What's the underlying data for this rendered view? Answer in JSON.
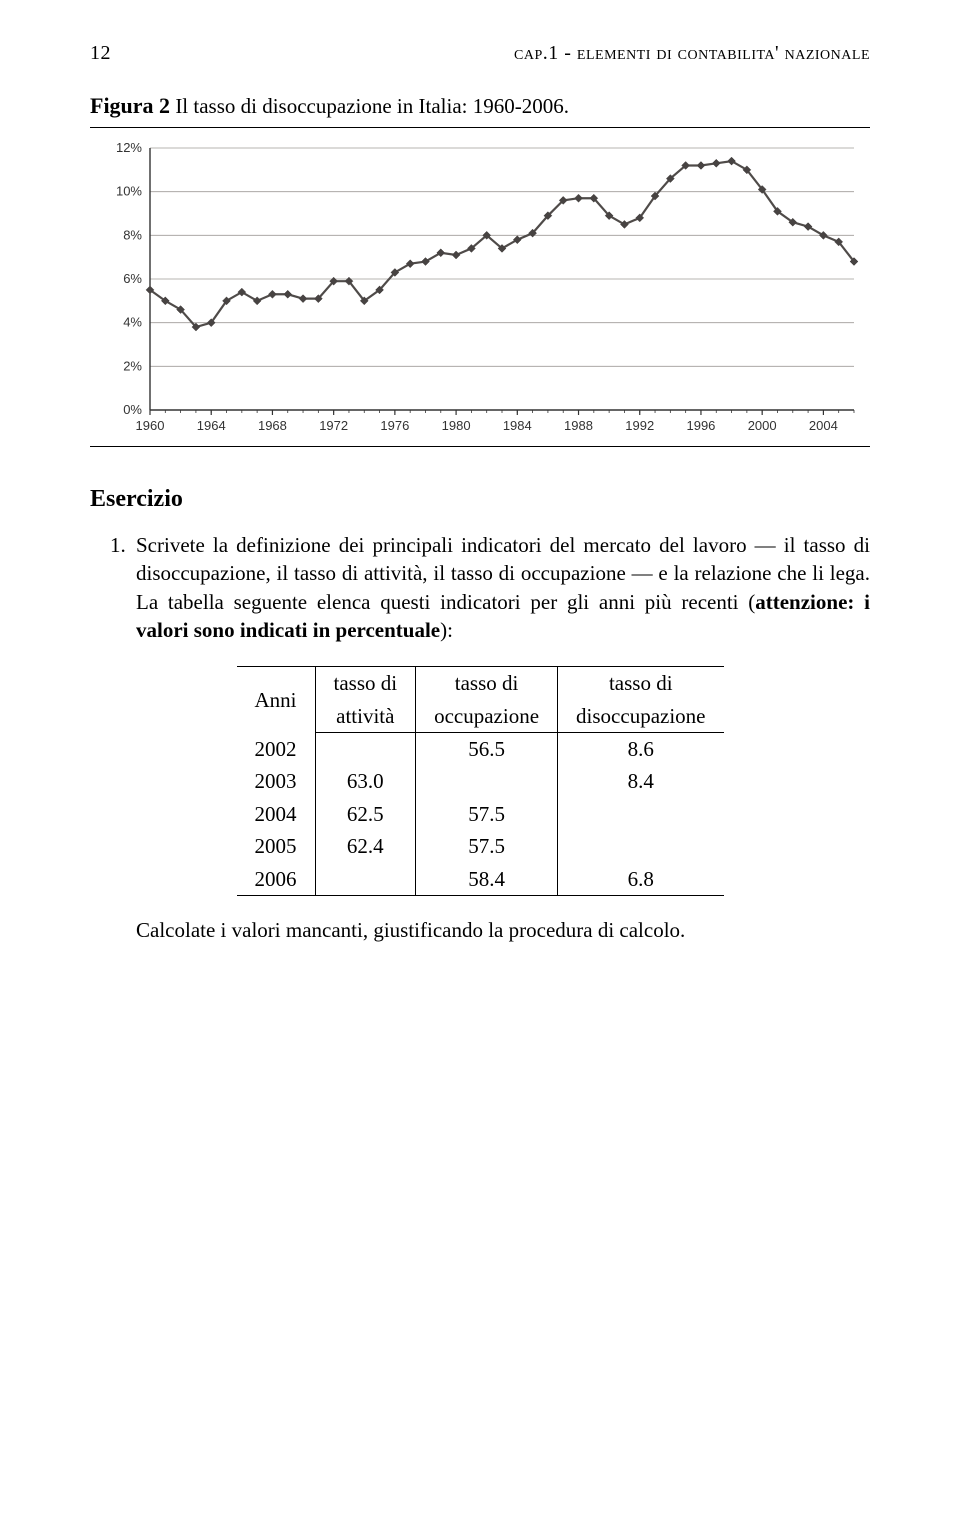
{
  "header": {
    "page_number": "12",
    "running_title": "cap.1 - elementi di contabilita' nazionale"
  },
  "figure": {
    "label": "Figura 2",
    "caption": "Il tasso di disoccupazione in Italia: 1960-2006."
  },
  "chart": {
    "type": "line",
    "background_color": "#ffffff",
    "grid_color": "#9f9c99",
    "axis_color": "#333333",
    "line_color": "#4f4b49",
    "marker_color": "#474342",
    "marker_size": 4,
    "line_width": 2.2,
    "label_fontsize": 13,
    "label_font": "Arial, Helvetica, sans-serif",
    "x_start": 1960,
    "x_end": 2006,
    "x_tick_step": 4,
    "y_min": 0,
    "y_max": 12,
    "y_tick_step": 2,
    "y_tick_suffix": "%",
    "series": [
      {
        "x": 1960,
        "y": 5.5
      },
      {
        "x": 1961,
        "y": 5.0
      },
      {
        "x": 1962,
        "y": 4.6
      },
      {
        "x": 1963,
        "y": 3.8
      },
      {
        "x": 1964,
        "y": 4.0
      },
      {
        "x": 1965,
        "y": 5.0
      },
      {
        "x": 1966,
        "y": 5.4
      },
      {
        "x": 1967,
        "y": 5.0
      },
      {
        "x": 1968,
        "y": 5.3
      },
      {
        "x": 1969,
        "y": 5.3
      },
      {
        "x": 1970,
        "y": 5.1
      },
      {
        "x": 1971,
        "y": 5.1
      },
      {
        "x": 1972,
        "y": 5.9
      },
      {
        "x": 1973,
        "y": 5.9
      },
      {
        "x": 1974,
        "y": 5.0
      },
      {
        "x": 1975,
        "y": 5.5
      },
      {
        "x": 1976,
        "y": 6.3
      },
      {
        "x": 1977,
        "y": 6.7
      },
      {
        "x": 1978,
        "y": 6.8
      },
      {
        "x": 1979,
        "y": 7.2
      },
      {
        "x": 1980,
        "y": 7.1
      },
      {
        "x": 1981,
        "y": 7.4
      },
      {
        "x": 1982,
        "y": 8.0
      },
      {
        "x": 1983,
        "y": 7.4
      },
      {
        "x": 1984,
        "y": 7.8
      },
      {
        "x": 1985,
        "y": 8.1
      },
      {
        "x": 1986,
        "y": 8.9
      },
      {
        "x": 1987,
        "y": 9.6
      },
      {
        "x": 1988,
        "y": 9.7
      },
      {
        "x": 1989,
        "y": 9.7
      },
      {
        "x": 1990,
        "y": 8.9
      },
      {
        "x": 1991,
        "y": 8.5
      },
      {
        "x": 1992,
        "y": 8.8
      },
      {
        "x": 1993,
        "y": 9.8
      },
      {
        "x": 1994,
        "y": 10.6
      },
      {
        "x": 1995,
        "y": 11.2
      },
      {
        "x": 1996,
        "y": 11.2
      },
      {
        "x": 1997,
        "y": 11.3
      },
      {
        "x": 1998,
        "y": 11.4
      },
      {
        "x": 1999,
        "y": 11.0
      },
      {
        "x": 2000,
        "y": 10.1
      },
      {
        "x": 2001,
        "y": 9.1
      },
      {
        "x": 2002,
        "y": 8.6
      },
      {
        "x": 2003,
        "y": 8.4
      },
      {
        "x": 2004,
        "y": 8.0
      },
      {
        "x": 2005,
        "y": 7.7
      },
      {
        "x": 2006,
        "y": 6.8
      }
    ]
  },
  "exercise": {
    "heading": "Esercizio",
    "number": "1.",
    "text_parts": [
      "Scrivete la definizione dei principali indicatori del mercato del lavoro — il tasso di disoccupazione, il tasso di attività, il tasso di occupazione — e la relazione che li lega. La tabella seguente elenca questi indicatori per gli anni più recenti (",
      "attenzione: i valori sono indicati in percentuale",
      "):"
    ],
    "closing": "Calcolate i valori mancanti, giustificando la procedura di calcolo."
  },
  "table": {
    "columns_row1": [
      "Anni",
      "tasso di",
      "tasso di",
      "tasso di"
    ],
    "columns_row2": [
      "",
      "attività",
      "occupazione",
      "disoccupazione"
    ],
    "rows": [
      [
        "2002",
        "",
        "56.5",
        "8.6"
      ],
      [
        "2003",
        "63.0",
        "",
        "8.4"
      ],
      [
        "2004",
        "62.5",
        "57.5",
        ""
      ],
      [
        "2005",
        "62.4",
        "57.5",
        ""
      ],
      [
        "2006",
        "",
        "58.4",
        "6.8"
      ]
    ]
  }
}
